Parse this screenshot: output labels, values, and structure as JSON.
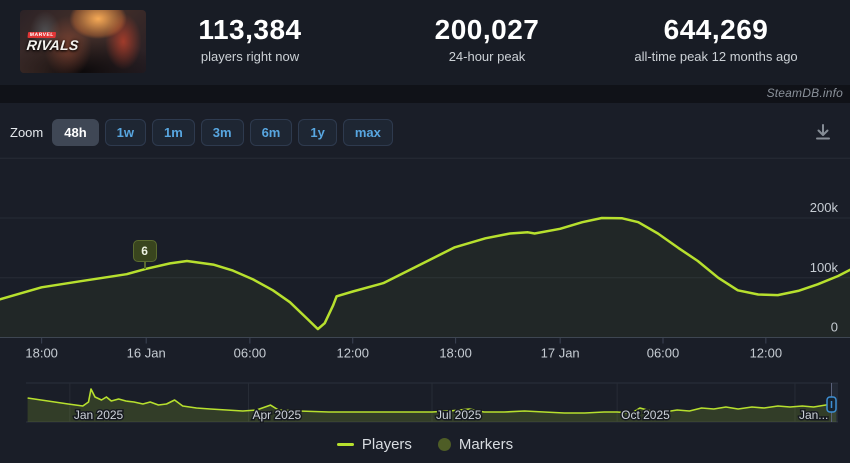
{
  "header": {
    "game": {
      "publisher_mark": "MARVEL",
      "logo_text": "RIVALS"
    },
    "stats": [
      {
        "value": "113,384",
        "caption": "players right now"
      },
      {
        "value": "200,027",
        "caption": "24-hour peak"
      },
      {
        "value": "644,269",
        "caption": "all-time peak 12 months ago"
      }
    ]
  },
  "brand": {
    "label": "SteamDB.info"
  },
  "toolbar": {
    "zoom_label": "Zoom",
    "ranges": [
      {
        "label": "48h",
        "selected": true
      },
      {
        "label": "1w",
        "selected": false
      },
      {
        "label": "1m",
        "selected": false
      },
      {
        "label": "3m",
        "selected": false
      },
      {
        "label": "6m",
        "selected": false
      },
      {
        "label": "1y",
        "selected": false
      },
      {
        "label": "max",
        "selected": false
      }
    ]
  },
  "legend": [
    {
      "label": "Players",
      "symbol": "line",
      "color": "#b7e02e"
    },
    {
      "label": "Markers",
      "symbol": "circle",
      "color": "#4e5d26"
    }
  ],
  "colors": {
    "line": "#b7e02e",
    "area_fill": "rgba(183,224,46,0.05)",
    "nav_fill": "rgba(183,224,46,0.16)",
    "grid": "#272c36",
    "axis": "#3c4354",
    "tick_text": "#c6ccd3",
    "nav_label_text": "#ccd1d8",
    "handle_stroke": "#3e8fd4",
    "handle_fill": "#16222e"
  },
  "chart_data": [
    {
      "type": "line",
      "name": "Players (48-hour window)",
      "title": "",
      "xlabel": "",
      "ylabel": "",
      "ylim": [
        0,
        300000
      ],
      "grid": "horizontal",
      "y_gridlines": [
        0,
        100000,
        200000,
        300000
      ],
      "y_ticks": [
        {
          "value": 0,
          "label": "0"
        },
        {
          "value": 100000,
          "label": "100k"
        },
        {
          "value": 200000,
          "label": "200k"
        }
      ],
      "x_ticks": [
        {
          "pos": 4.9,
          "label": "18:00"
        },
        {
          "pos": 17.2,
          "label": "16 Jan"
        },
        {
          "pos": 29.4,
          "label": "06:00"
        },
        {
          "pos": 41.5,
          "label": "12:00"
        },
        {
          "pos": 53.6,
          "label": "18:00"
        },
        {
          "pos": 65.9,
          "label": "17 Jan"
        },
        {
          "pos": 78.0,
          "label": "06:00"
        },
        {
          "pos": 90.1,
          "label": "12:00"
        }
      ],
      "points": [
        [
          0,
          64000
        ],
        [
          4.9,
          84000
        ],
        [
          9.4,
          94000
        ],
        [
          14.9,
          106000
        ],
        [
          17.2,
          115000
        ],
        [
          20.0,
          124000
        ],
        [
          22.0,
          128000
        ],
        [
          25.1,
          122000
        ],
        [
          27.4,
          112000
        ],
        [
          29.8,
          97000
        ],
        [
          32.1,
          79000
        ],
        [
          34.1,
          59000
        ],
        [
          36.1,
          32000
        ],
        [
          37.4,
          14000
        ],
        [
          38.2,
          24000
        ],
        [
          39.2,
          54000
        ],
        [
          39.6,
          69000
        ],
        [
          41.5,
          77000
        ],
        [
          45.1,
          91000
        ],
        [
          50.0,
          126000
        ],
        [
          53.5,
          151000
        ],
        [
          57.1,
          166000
        ],
        [
          60.0,
          174000
        ],
        [
          62.1,
          176000
        ],
        [
          62.9,
          174000
        ],
        [
          65.9,
          182000
        ],
        [
          68.5,
          193000
        ],
        [
          70.8,
          200027
        ],
        [
          73.2,
          199500
        ],
        [
          75.1,
          193000
        ],
        [
          77.4,
          174000
        ],
        [
          79.8,
          150000
        ],
        [
          82.1,
          128000
        ],
        [
          84.5,
          100000
        ],
        [
          86.8,
          79000
        ],
        [
          89.2,
          72000
        ],
        [
          91.5,
          71000
        ],
        [
          93.9,
          78000
        ],
        [
          96.2,
          89000
        ],
        [
          98.6,
          103000
        ],
        [
          100,
          113384
        ]
      ],
      "marker": {
        "label": "6",
        "pos": 16.9,
        "value": 115000
      }
    },
    {
      "type": "area",
      "name": "Players (all-time navigator)",
      "title": "",
      "ylim": [
        0,
        644269
      ],
      "x_ticks": [
        {
          "pos": 5.4,
          "label": "Jan 2025"
        },
        {
          "pos": 27.4,
          "label": "Apr 2025"
        },
        {
          "pos": 50.0,
          "label": "Jul 2025"
        },
        {
          "pos": 72.8,
          "label": "Oct 2025"
        },
        {
          "pos": 94.7,
          "label": "Jan..."
        }
      ],
      "points": [
        [
          0.2,
          468000
        ],
        [
          2.7,
          410000
        ],
        [
          5.2,
          351000
        ],
        [
          7.0,
          312000
        ],
        [
          7.7,
          390000
        ],
        [
          8.0,
          644269
        ],
        [
          8.5,
          488000
        ],
        [
          9.3,
          429000
        ],
        [
          9.9,
          488000
        ],
        [
          10.5,
          410000
        ],
        [
          11.4,
          449000
        ],
        [
          12.3,
          410000
        ],
        [
          13.3,
          390000
        ],
        [
          14.4,
          351000
        ],
        [
          15.3,
          390000
        ],
        [
          16.3,
          332000
        ],
        [
          17.3,
          351000
        ],
        [
          18.3,
          429000
        ],
        [
          19.3,
          312000
        ],
        [
          21.0,
          273000
        ],
        [
          22.7,
          254000
        ],
        [
          24.7,
          234000
        ],
        [
          26.7,
          215000
        ],
        [
          28.4,
          234000
        ],
        [
          30.1,
          330000
        ],
        [
          31.1,
          234000
        ],
        [
          33.6,
          215000
        ],
        [
          37.3,
          195000
        ],
        [
          41.6,
          195000
        ],
        [
          45.9,
          195000
        ],
        [
          50.0,
          195000
        ],
        [
          52.1,
          215000
        ],
        [
          54.6,
          254000
        ],
        [
          56.4,
          195000
        ],
        [
          58.9,
          195000
        ],
        [
          61.4,
          215000
        ],
        [
          63.8,
          195000
        ],
        [
          66.3,
          176000
        ],
        [
          68.8,
          176000
        ],
        [
          71.2,
          195000
        ],
        [
          72.8,
          195000
        ],
        [
          74.6,
          176000
        ],
        [
          75.6,
          273000
        ],
        [
          77.0,
          215000
        ],
        [
          78.6,
          195000
        ],
        [
          80.2,
          234000
        ],
        [
          81.7,
          215000
        ],
        [
          83.2,
          273000
        ],
        [
          84.7,
          254000
        ],
        [
          86.2,
          293000
        ],
        [
          87.7,
          254000
        ],
        [
          89.4,
          293000
        ],
        [
          90.9,
          273000
        ],
        [
          92.6,
          312000
        ],
        [
          94.1,
          293000
        ],
        [
          95.6,
          312000
        ],
        [
          97.0,
          293000
        ],
        [
          98.5,
          332000
        ],
        [
          99.8,
          371000
        ]
      ],
      "selected_range": {
        "from_pos": 99.2,
        "to_pos": 100
      }
    }
  ]
}
